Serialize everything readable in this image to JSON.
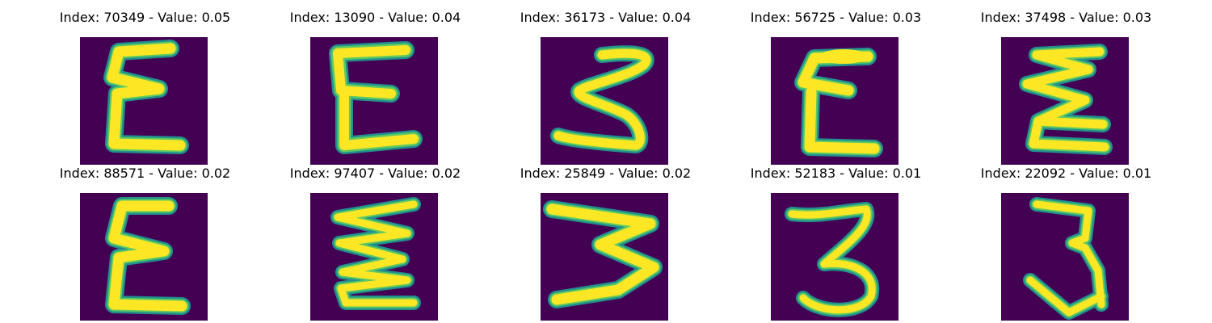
{
  "colors": {
    "background": "#440154",
    "stroke_core": "#fde725",
    "stroke_mid": "#5ec962",
    "stroke_edge": "#21918c"
  },
  "images": [
    {
      "index": "70349",
      "value": "0.05",
      "title": "Index: 70349 - Value: 0.05",
      "glyph": "digit-e"
    },
    {
      "index": "13090",
      "value": "0.04",
      "title": "Index: 13090 - Value: 0.04",
      "glyph": "digit-e"
    },
    {
      "index": "36173",
      "value": "0.04",
      "title": "Index: 36173 - Value: 0.04",
      "glyph": "digit-3"
    },
    {
      "index": "56725",
      "value": "0.03",
      "title": "Index: 56725 - Value: 0.03",
      "glyph": "digit-e"
    },
    {
      "index": "37498",
      "value": "0.03",
      "title": "Index: 37498 - Value: 0.03",
      "glyph": "digit-zigzag"
    },
    {
      "index": "88571",
      "value": "0.02",
      "title": "Index: 88571 - Value: 0.02",
      "glyph": "digit-e"
    },
    {
      "index": "97407",
      "value": "0.02",
      "title": "Index: 97407 - Value: 0.02",
      "glyph": "digit-zigzag"
    },
    {
      "index": "25849",
      "value": "0.02",
      "title": "Index: 25849 - Value: 0.02",
      "glyph": "digit-w"
    },
    {
      "index": "52183",
      "value": "0.01",
      "title": "Index: 52183 - Value: 0.01",
      "glyph": "digit-3"
    },
    {
      "index": "22092",
      "value": "0.01",
      "title": "Index: 22092 - Value: 0.01",
      "glyph": "digit-3"
    }
  ]
}
